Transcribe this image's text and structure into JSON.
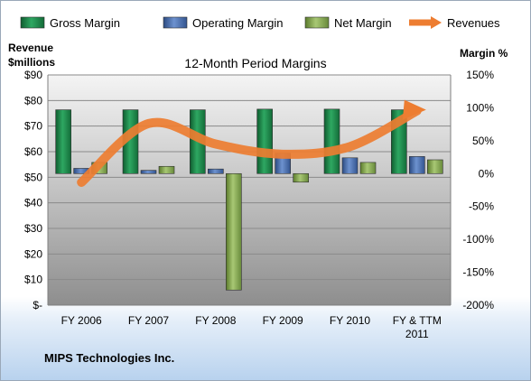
{
  "chart_data": {
    "type": "bar",
    "title": "12-Month Period Margins",
    "categories": [
      "FY 2006",
      "FY 2007",
      "FY 2008",
      "FY 2009",
      "FY 2010",
      "FY & TTM 2011"
    ],
    "series": [
      {
        "name": "Gross Margin",
        "axis": "right",
        "unit": "%",
        "values": [
          97,
          97,
          97,
          98,
          98,
          97
        ],
        "color": "#1e8a4c"
      },
      {
        "name": "Operating Margin",
        "axis": "right",
        "unit": "%",
        "values": [
          8,
          5,
          7,
          31,
          24,
          26
        ],
        "color": "#4a70b0"
      },
      {
        "name": "Net Margin",
        "axis": "right",
        "unit": "%",
        "values": [
          17,
          11,
          -177,
          -13,
          17,
          21
        ],
        "color": "#86ac4e"
      },
      {
        "name": "Revenues",
        "type": "line",
        "axis": "left",
        "unit": "$millions",
        "values": [
          48,
          71,
          63,
          59,
          62,
          76
        ],
        "color": "#ed7d31"
      }
    ],
    "left_axis": {
      "label_line1": "Revenue",
      "label_line2": "$millions",
      "min": 0,
      "max": 90,
      "step": 10,
      "ticks": [
        "$-",
        "$10",
        "$20",
        "$30",
        "$40",
        "$50",
        "$60",
        "$70",
        "$80",
        "$90"
      ]
    },
    "right_axis": {
      "label": "Margin %",
      "min": -200,
      "max": 150,
      "step": 50,
      "ticks": [
        "-200%",
        "-150%",
        "-100%",
        "-50%",
        "0%",
        "50%",
        "100%",
        "150%"
      ]
    },
    "legend_position": "top",
    "grid": true
  },
  "company": "MIPS Technologies Inc."
}
